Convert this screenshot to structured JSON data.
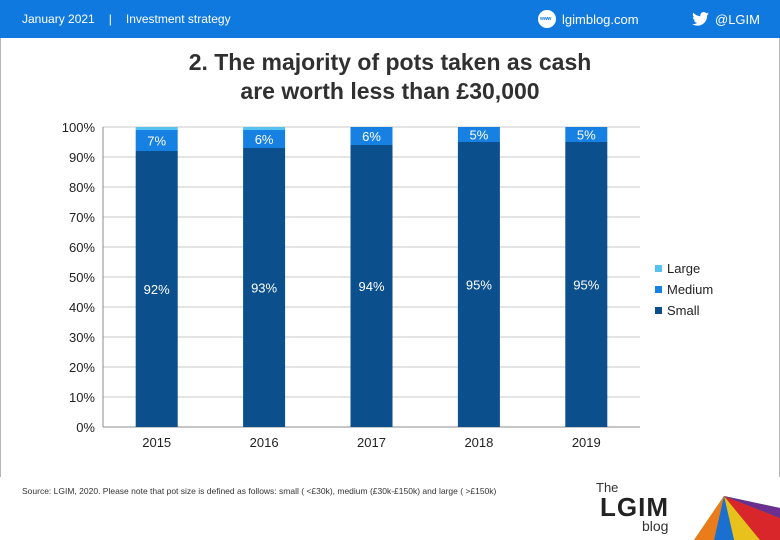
{
  "header": {
    "date": "January 2021",
    "separator": "|",
    "section": "Investment strategy",
    "blog_label": "lgimblog.com",
    "blog_icon": "globe-icon",
    "twitter_label": "@LGIM",
    "twitter_icon": "twitter-icon",
    "bar_color": "#1079e0"
  },
  "footer": {
    "source": "Source: LGIM,  2020. Please note that pot size is defined as follows: small ( <£30k), medium (£30k-£150k) and large ( >£150k)",
    "logo_the": "The",
    "logo_main": "LGIM",
    "logo_blog": "blog"
  },
  "chart_data": {
    "type": "bar",
    "stacked": true,
    "title_line1": "2. The majority of pots taken as cash",
    "title_line2": "are worth less than £30,000",
    "categories": [
      "2015",
      "2016",
      "2017",
      "2018",
      "2019"
    ],
    "series": [
      {
        "name": "Small",
        "color": "#0b4f8c",
        "values": [
          92,
          93,
          94,
          95,
          95
        ],
        "labels": [
          "92%",
          "93%",
          "94%",
          "95%",
          "95%"
        ]
      },
      {
        "name": "Medium",
        "color": "#1680e3",
        "values": [
          7,
          6,
          6,
          5,
          5
        ],
        "labels": [
          "7%",
          "6%",
          "6%",
          "5%",
          "5%"
        ]
      },
      {
        "name": "Large",
        "color": "#56c2f0",
        "values": [
          1,
          1,
          0,
          0,
          0
        ],
        "labels": [
          "",
          "",
          "",
          "",
          ""
        ]
      }
    ],
    "legend_order": [
      "Large",
      "Medium",
      "Small"
    ],
    "legend_position": "right",
    "ylim": [
      0,
      100
    ],
    "yticks": [
      "0%",
      "10%",
      "20%",
      "30%",
      "40%",
      "50%",
      "60%",
      "70%",
      "80%",
      "90%",
      "100%"
    ],
    "grid": true
  }
}
